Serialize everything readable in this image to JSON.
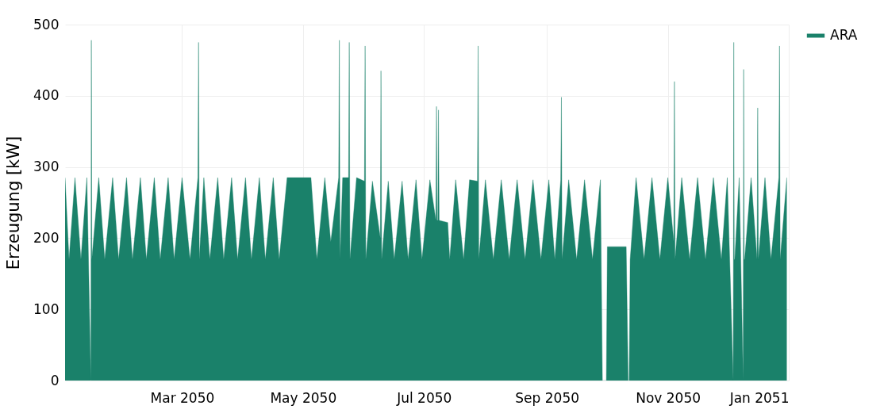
{
  "chart_data": {
    "type": "area",
    "ylabel": "Erzeugung [kW]",
    "xlim": [
      "2050-01-01",
      "2051-01-01"
    ],
    "xticks": [
      {
        "value": "2050-03-01",
        "label": "Mar 2050"
      },
      {
        "value": "2050-05-01",
        "label": "May 2050"
      },
      {
        "value": "2050-07-01",
        "label": "Jul 2050"
      },
      {
        "value": "2050-09-01",
        "label": "Sep 2050"
      },
      {
        "value": "2050-11-01",
        "label": "Nov 2050"
      },
      {
        "value": "2051-01-01",
        "label": "Jan 2051"
      }
    ],
    "ylim": [
      0,
      500
    ],
    "yticks": [
      0,
      100,
      200,
      300,
      400,
      500
    ],
    "grid": true,
    "legend": "right",
    "x": [
      "2050-01-01",
      "2050-01-03",
      "2050-01-06",
      "2050-01-09",
      "2050-01-12",
      "2050-01-14T00:00",
      "2050-01-14T06:00",
      "2050-01-14T12:00",
      "2050-01-18",
      "2050-01-21",
      "2050-01-25",
      "2050-01-28",
      "2050-02-01",
      "2050-02-04",
      "2050-02-08",
      "2050-02-11",
      "2050-02-15",
      "2050-02-18",
      "2050-02-22",
      "2050-02-25",
      "2050-03-01",
      "2050-03-05",
      "2050-03-09T00:00",
      "2050-03-09T08:00",
      "2050-03-09T16:00",
      "2050-03-12",
      "2050-03-15",
      "2050-03-19",
      "2050-03-22",
      "2050-03-26",
      "2050-03-29",
      "2050-04-02",
      "2050-04-05",
      "2050-04-09",
      "2050-04-12",
      "2050-04-16",
      "2050-04-19",
      "2050-04-23",
      "2050-04-27",
      "2050-05-05",
      "2050-05-08",
      "2050-05-12",
      "2050-05-15",
      "2050-05-19T00:00",
      "2050-05-19T08:00",
      "2050-05-19T16:00",
      "2050-05-21",
      "2050-05-24T00:00",
      "2050-05-24T08:00",
      "2050-05-24T16:00",
      "2050-05-28",
      "2050-06-01T00:00",
      "2050-06-01T08:00",
      "2050-06-01T16:00",
      "2050-06-05",
      "2050-06-09T00:00",
      "2050-06-09T08:00",
      "2050-06-09T16:00",
      "2050-06-13",
      "2050-06-16",
      "2050-06-20",
      "2050-06-23",
      "2050-06-27",
      "2050-06-30",
      "2050-07-04",
      "2050-07-07T00:00",
      "2050-07-07T08:00",
      "2050-07-07T16:00",
      "2050-07-08T00:00",
      "2050-07-08T08:00",
      "2050-07-08T16:00",
      "2050-07-13",
      "2050-07-14",
      "2050-07-17",
      "2050-07-21",
      "2050-07-24",
      "2050-07-28T00:00",
      "2050-07-28T08:00",
      "2050-07-28T16:00",
      "2050-08-01",
      "2050-08-05",
      "2050-08-09",
      "2050-08-13",
      "2050-08-17",
      "2050-08-21",
      "2050-08-25",
      "2050-08-29",
      "2050-09-02",
      "2050-09-05",
      "2050-09-08T00:00",
      "2050-09-08T08:00",
      "2050-09-08T16:00",
      "2050-09-12",
      "2050-09-16",
      "2050-09-20",
      "2050-09-24",
      "2050-09-28",
      "2050-09-29T00:00",
      "2050-09-29T12:00",
      "2050-10-01T00:00",
      "2050-10-01T12:00",
      "2050-10-06",
      "2050-10-11",
      "2050-10-12T00:00",
      "2050-10-12T12:00",
      "2050-10-13",
      "2050-10-16",
      "2050-10-20",
      "2050-10-24",
      "2050-10-28",
      "2050-11-01",
      "2050-11-04T00:00",
      "2050-11-04T08:00",
      "2050-11-04T16:00",
      "2050-11-08",
      "2050-11-12",
      "2050-11-16",
      "2050-11-20",
      "2050-11-24",
      "2050-11-28",
      "2050-12-01",
      "2050-12-04T00:00",
      "2050-12-04T06:00",
      "2050-12-04T12:00",
      "2050-12-04T18:00",
      "2050-12-07",
      "2050-12-09T00:00",
      "2050-12-09T06:00",
      "2050-12-09T12:00",
      "2050-12-09T18:00",
      "2050-12-13",
      "2050-12-16T00:00",
      "2050-12-16T08:00",
      "2050-12-16T16:00",
      "2050-12-20",
      "2050-12-23",
      "2050-12-27T00:00",
      "2050-12-27T08:00",
      "2050-12-27T16:00",
      "2050-12-31"
    ],
    "series": [
      {
        "name": "ARA",
        "color": "#1a816a",
        "values": [
          285,
          170,
          285,
          170,
          285,
          0,
          478,
          170,
          285,
          170,
          285,
          170,
          285,
          170,
          285,
          170,
          285,
          170,
          285,
          170,
          285,
          170,
          285,
          475,
          170,
          285,
          170,
          285,
          170,
          285,
          170,
          285,
          170,
          285,
          170,
          285,
          170,
          285,
          285,
          285,
          170,
          285,
          195,
          285,
          478,
          170,
          285,
          285,
          475,
          170,
          285,
          280,
          470,
          170,
          280,
          200,
          435,
          170,
          280,
          170,
          280,
          170,
          282,
          170,
          282,
          225,
          385,
          225,
          225,
          380,
          225,
          222,
          170,
          282,
          170,
          282,
          280,
          470,
          170,
          282,
          170,
          282,
          170,
          282,
          170,
          282,
          170,
          282,
          170,
          282,
          398,
          170,
          282,
          170,
          282,
          170,
          282,
          0,
          0,
          0,
          188,
          188,
          188,
          0,
          0,
          170,
          285,
          170,
          285,
          170,
          285,
          195,
          420,
          170,
          285,
          170,
          285,
          170,
          285,
          170,
          285,
          0,
          475,
          170,
          170,
          285,
          0,
          437,
          170,
          170,
          285,
          170,
          383,
          170,
          285,
          170,
          285,
          470,
          170,
          285
        ]
      }
    ]
  }
}
